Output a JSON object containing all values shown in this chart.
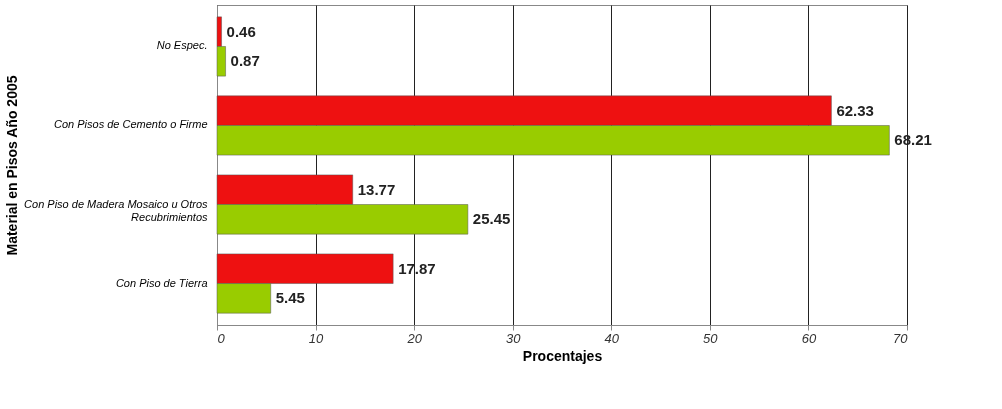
{
  "chart_data": {
    "type": "bar",
    "orientation": "horizontal",
    "xlabel": "Procentajes",
    "ylabel": "Material en Pisos Año 2005",
    "categories": [
      "No Espec.",
      "Con Pisos de Cemento o Firme",
      "Con Piso de Madera Mosaico u Otros Recubrimientos",
      "Con Piso de Tierra"
    ],
    "series": [
      {
        "color": "#ee1111",
        "values": [
          0.46,
          62.33,
          13.77,
          17.87
        ]
      },
      {
        "color": "#99cc00",
        "values": [
          0.87,
          68.21,
          25.45,
          5.45
        ]
      }
    ],
    "xlim": [
      0,
      70
    ],
    "xticks": [
      0,
      10,
      20,
      30,
      40,
      50,
      60,
      70
    ],
    "grid": "x",
    "data_labels": true,
    "legend": false
  }
}
